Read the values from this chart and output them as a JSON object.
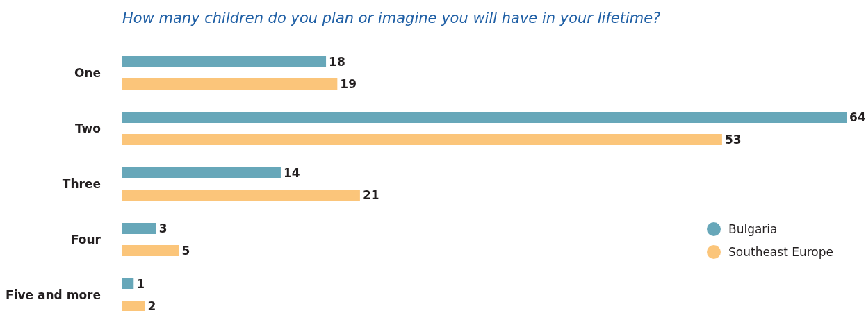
{
  "chart_data": {
    "type": "bar",
    "orientation": "horizontal",
    "title": "How many children do you plan or imagine you will have in your lifetime?",
    "categories": [
      "One",
      "Two",
      "Three",
      "Four",
      "Five and more"
    ],
    "series": [
      {
        "name": "Bulgaria",
        "color": "#67a7b9",
        "values": [
          18,
          64,
          14,
          3,
          1
        ]
      },
      {
        "name": "Southeast Europe",
        "color": "#fbc57a",
        "values": [
          19,
          53,
          21,
          5,
          2
        ]
      }
    ],
    "data_labels": true,
    "legend": "right"
  }
}
